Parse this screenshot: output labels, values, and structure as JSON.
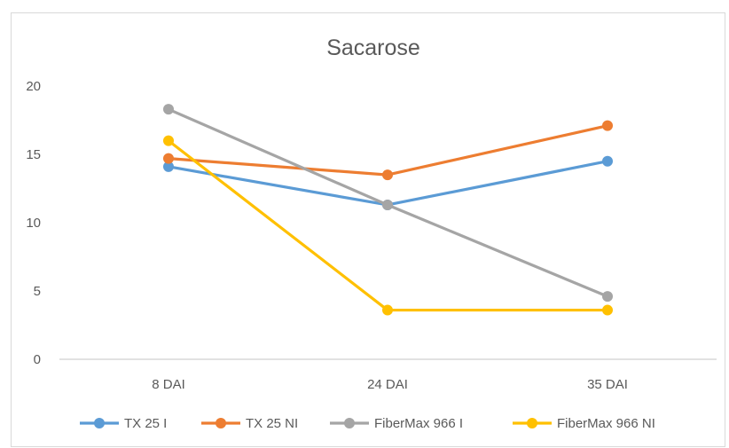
{
  "chart_data": {
    "type": "line",
    "title": "Sacarose",
    "xlabel": "",
    "ylabel": "",
    "categories": [
      "8 DAI",
      "24 DAI",
      "35 DAI"
    ],
    "yticks": [
      "0",
      "5",
      "10",
      "15",
      "20"
    ],
    "ylim": [
      0,
      20
    ],
    "grid": false,
    "legend_position": "bottom",
    "series": [
      {
        "name": "TX 25 I",
        "color": "#5B9BD5",
        "values": [
          14.1,
          11.3,
          14.5
        ]
      },
      {
        "name": "TX 25 NI",
        "color": "#ED7D31",
        "values": [
          14.7,
          13.5,
          17.1
        ]
      },
      {
        "name": "FiberMax 966 I",
        "color": "#A5A5A5",
        "values": [
          18.3,
          11.3,
          4.6
        ]
      },
      {
        "name": "FiberMax 966 NI",
        "color": "#FFC000",
        "values": [
          16.0,
          3.6,
          3.6
        ]
      }
    ]
  }
}
